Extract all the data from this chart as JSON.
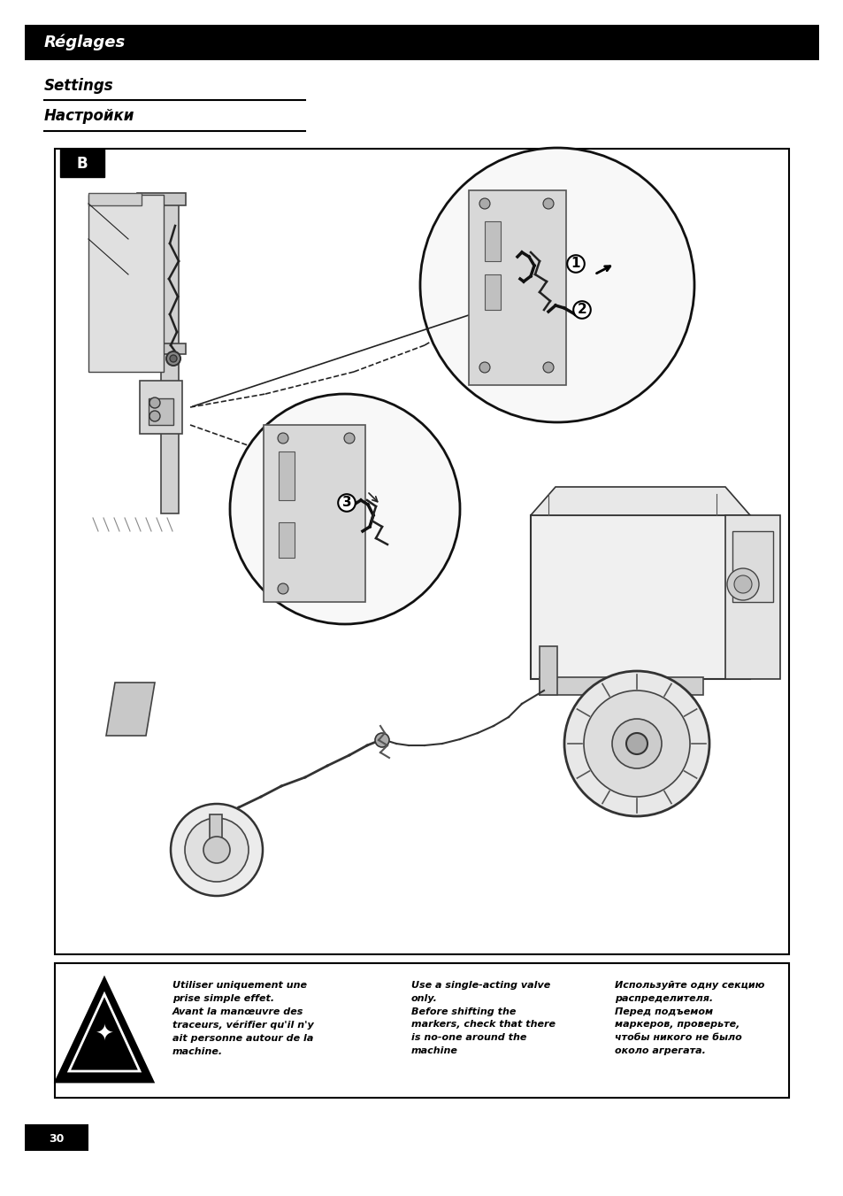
{
  "bg_color": "#ffffff",
  "header_bg": "#000000",
  "header_text": "Réglages",
  "header_text_color": "#ffffff",
  "header_font_size": 12,
  "subtitle1": "Settings",
  "subtitle2": "Настройки",
  "subtitle_font_size": 11,
  "page_number": "30",
  "page_bg": "#000000",
  "page_text_color": "#ffffff",
  "warning_text_fr": "Utiliser uniquement une\nprise simple effet.\nAvant la manœuvre des\ntraceurs, vérifier qu'il n'y\nait personne autour de la\nmachine.",
  "warning_text_en": "Use a single-acting valve\nonly.\nBefore shifting the\nmarkers, check that there\nis no-one around the\nmachine",
  "warning_text_ru": "Используйте одну секцию\nраспределителя.\nПеред подъемом\nмаркеров, проверьте,\nчтобы никого не было\nоколо агрегата.",
  "label_B": "B"
}
